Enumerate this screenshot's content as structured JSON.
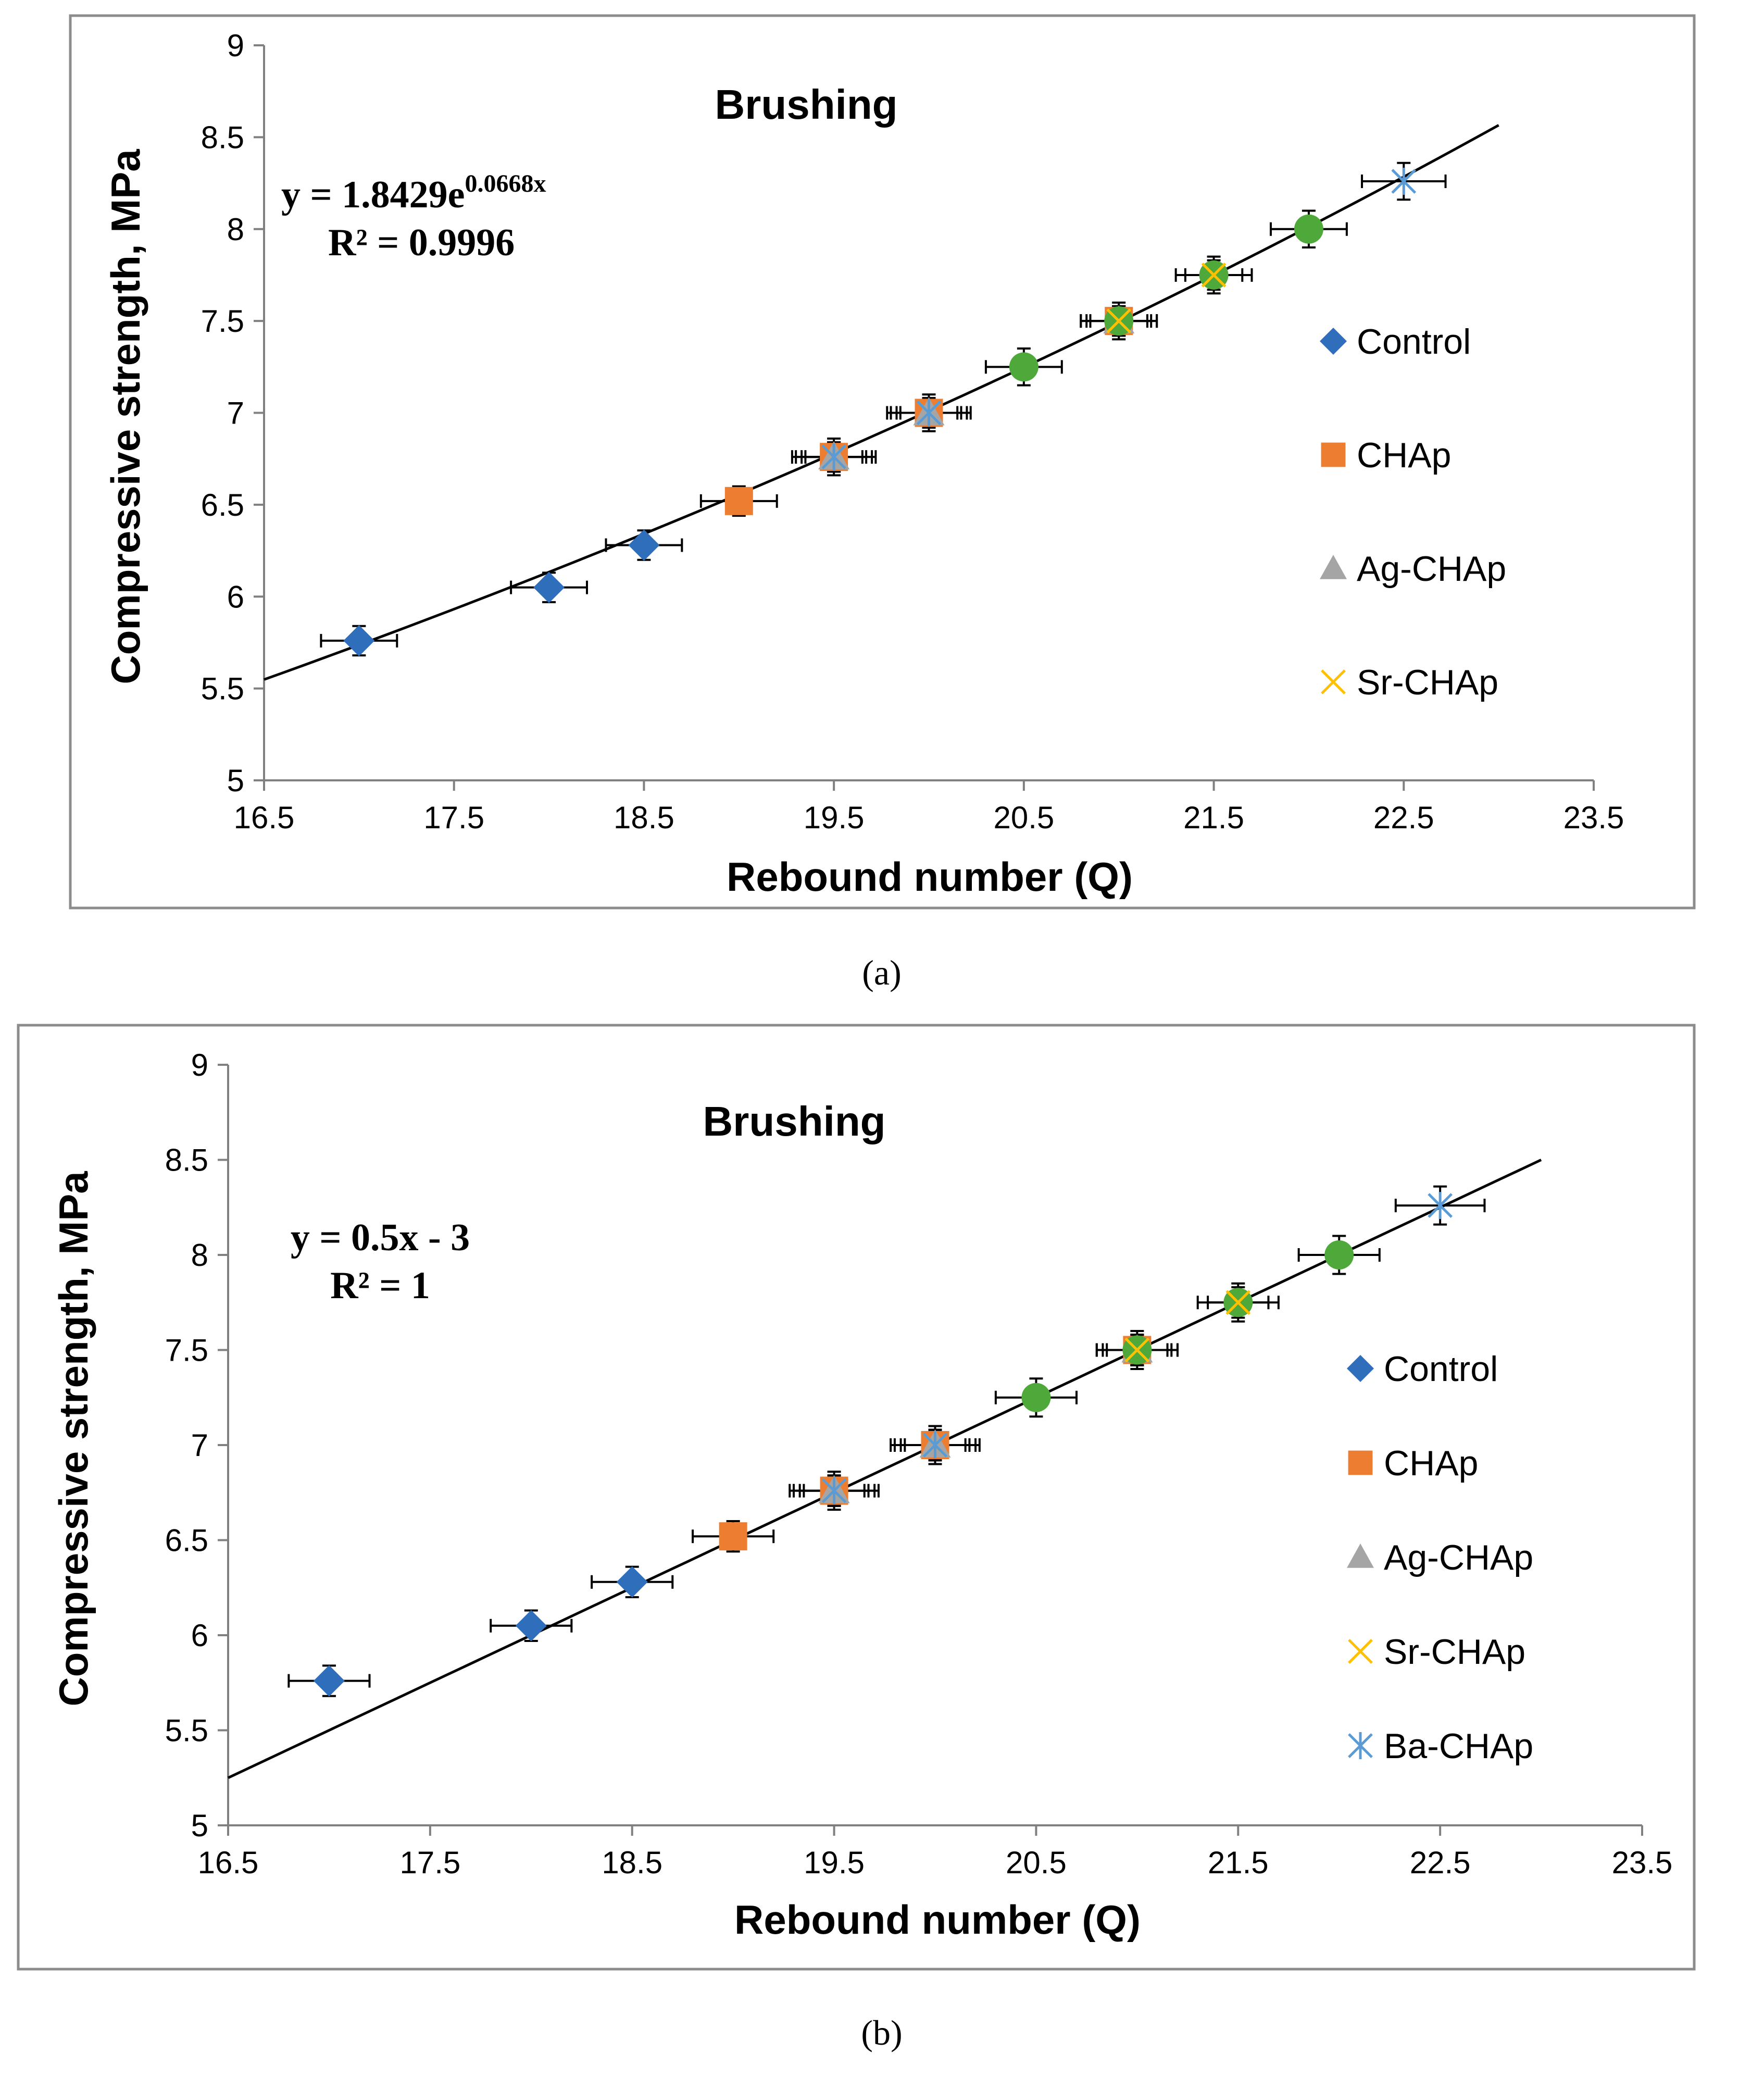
{
  "colors": {
    "control": "#2F6EBA",
    "chap": "#ED7D31",
    "ag": "#A5A5A5",
    "sr": "#FFC000",
    "ba": "#5B9BD5",
    "green": "#4FA83A",
    "frame": "#8C8C8C",
    "axis": "#808080",
    "line": "#000000"
  },
  "chart_data": [
    {
      "type": "scatter",
      "panel_label": "(a)",
      "title": "Brushing",
      "xlabel": "Rebound number (Q)",
      "ylabel": "Compressive strength, MPa",
      "xlim": [
        16.5,
        23.5
      ],
      "ylim": [
        5,
        9
      ],
      "xticks": [
        "16.5",
        "17.5",
        "18.5",
        "19.5",
        "20.5",
        "21.5",
        "22.5",
        "23.5"
      ],
      "yticks": [
        "5",
        "5.5",
        "6",
        "6.5",
        "7",
        "7.5",
        "8",
        "8.5",
        "9"
      ],
      "grid": false,
      "legend_position": "right",
      "equation": "y = 1.8429e",
      "equation_exp": "0.0668x",
      "r2": "R² = 0.9996",
      "trendline": {
        "kind": "exponential",
        "a": 1.8429,
        "b": 0.0668,
        "x_range": [
          16.5,
          23.0
        ]
      },
      "legend": [
        {
          "label": "Control",
          "key": "control",
          "marker": "diamond"
        },
        {
          "label": "CHAp",
          "key": "chap",
          "marker": "square"
        },
        {
          "label": "Ag-CHAp",
          "key": "ag",
          "marker": "triangle"
        },
        {
          "label": "Sr-CHAp",
          "key": "sr",
          "marker": "x"
        }
      ],
      "series": [
        {
          "name": "Control",
          "key": "control",
          "marker": "diamond",
          "x": [
            17,
            18,
            18.5
          ],
          "y": [
            5.76,
            6.05,
            6.28
          ],
          "xerr": 0.2,
          "yerr": 0.08
        },
        {
          "name": "CHAp",
          "key": "chap",
          "marker": "square",
          "x": [
            19,
            19.5,
            20,
            21
          ],
          "y": [
            6.52,
            6.76,
            7.0,
            7.5
          ],
          "xerr": 0.2,
          "yerr": 0.08
        },
        {
          "name": "Ag-CHAp",
          "key": "ag",
          "marker": "triangle",
          "x": [
            19.5,
            20,
            21
          ],
          "y": [
            6.76,
            7.0,
            7.5
          ],
          "xerr": 0.17,
          "yerr": 0.08
        },
        {
          "name": "Sr-CHAp",
          "key": "sr",
          "marker": "x",
          "x": [
            19.5,
            20,
            21,
            21.5
          ],
          "y": [
            6.76,
            7.0,
            7.5,
            7.75
          ],
          "xerr": 0.15,
          "yerr": 0.08
        },
        {
          "name": "Ba-CHAp",
          "key": "ba",
          "marker": "asterisk",
          "x": [
            19.5,
            20,
            22.5
          ],
          "y": [
            6.76,
            7.0,
            8.26
          ],
          "xerr": 0.22,
          "yerr": 0.1
        },
        {
          "name": "Green",
          "key": "green",
          "marker": "circle",
          "x": [
            20.5,
            21,
            21.5,
            22
          ],
          "y": [
            7.25,
            7.5,
            7.75,
            8.0
          ],
          "xerr": 0.2,
          "yerr": 0.1
        }
      ]
    },
    {
      "type": "scatter",
      "panel_label": "(b)",
      "title": "Brushing",
      "xlabel": "Rebound number (Q)",
      "ylabel": "Compressive strength, MPa",
      "xlim": [
        16.5,
        23.5
      ],
      "ylim": [
        5,
        9
      ],
      "xticks": [
        "16.5",
        "17.5",
        "18.5",
        "19.5",
        "20.5",
        "21.5",
        "22.5",
        "23.5"
      ],
      "yticks": [
        "5",
        "5.5",
        "6",
        "6.5",
        "7",
        "7.5",
        "8",
        "8.5",
        "9"
      ],
      "grid": false,
      "legend_position": "right",
      "equation": "y = 0.5x - 3",
      "equation_exp": "",
      "r2": "R² = 1",
      "trendline": {
        "kind": "linear",
        "m": 0.5,
        "c": -3,
        "x_range": [
          16.5,
          23.0
        ]
      },
      "legend": [
        {
          "label": "Control",
          "key": "control",
          "marker": "diamond"
        },
        {
          "label": "CHAp",
          "key": "chap",
          "marker": "square"
        },
        {
          "label": "Ag-CHAp",
          "key": "ag",
          "marker": "triangle"
        },
        {
          "label": "Sr-CHAp",
          "key": "sr",
          "marker": "x"
        },
        {
          "label": "Ba-CHAp",
          "key": "ba",
          "marker": "asterisk"
        }
      ],
      "series": [
        {
          "name": "Control",
          "key": "control",
          "marker": "diamond",
          "x": [
            17,
            18,
            18.5
          ],
          "y": [
            5.76,
            6.05,
            6.28
          ],
          "xerr": 0.2,
          "yerr": 0.08
        },
        {
          "name": "CHAp",
          "key": "chap",
          "marker": "square",
          "x": [
            19,
            19.5,
            20,
            21
          ],
          "y": [
            6.52,
            6.76,
            7.0,
            7.5
          ],
          "xerr": 0.2,
          "yerr": 0.08
        },
        {
          "name": "Ag-CHAp",
          "key": "ag",
          "marker": "triangle",
          "x": [
            19.5,
            20,
            21
          ],
          "y": [
            6.76,
            7.0,
            7.5
          ],
          "xerr": 0.17,
          "yerr": 0.08
        },
        {
          "name": "Sr-CHAp",
          "key": "sr",
          "marker": "x",
          "x": [
            19.5,
            20,
            21,
            21.5
          ],
          "y": [
            6.76,
            7.0,
            7.5,
            7.75
          ],
          "xerr": 0.15,
          "yerr": 0.08
        },
        {
          "name": "Ba-CHAp",
          "key": "ba",
          "marker": "asterisk",
          "x": [
            19.5,
            20,
            22.5
          ],
          "y": [
            6.76,
            7.0,
            8.26
          ],
          "xerr": 0.22,
          "yerr": 0.1
        },
        {
          "name": "Green",
          "key": "green",
          "marker": "circle",
          "x": [
            20.5,
            21,
            21.5,
            22
          ],
          "y": [
            7.25,
            7.5,
            7.75,
            8.0
          ],
          "xerr": 0.2,
          "yerr": 0.1
        }
      ]
    }
  ]
}
